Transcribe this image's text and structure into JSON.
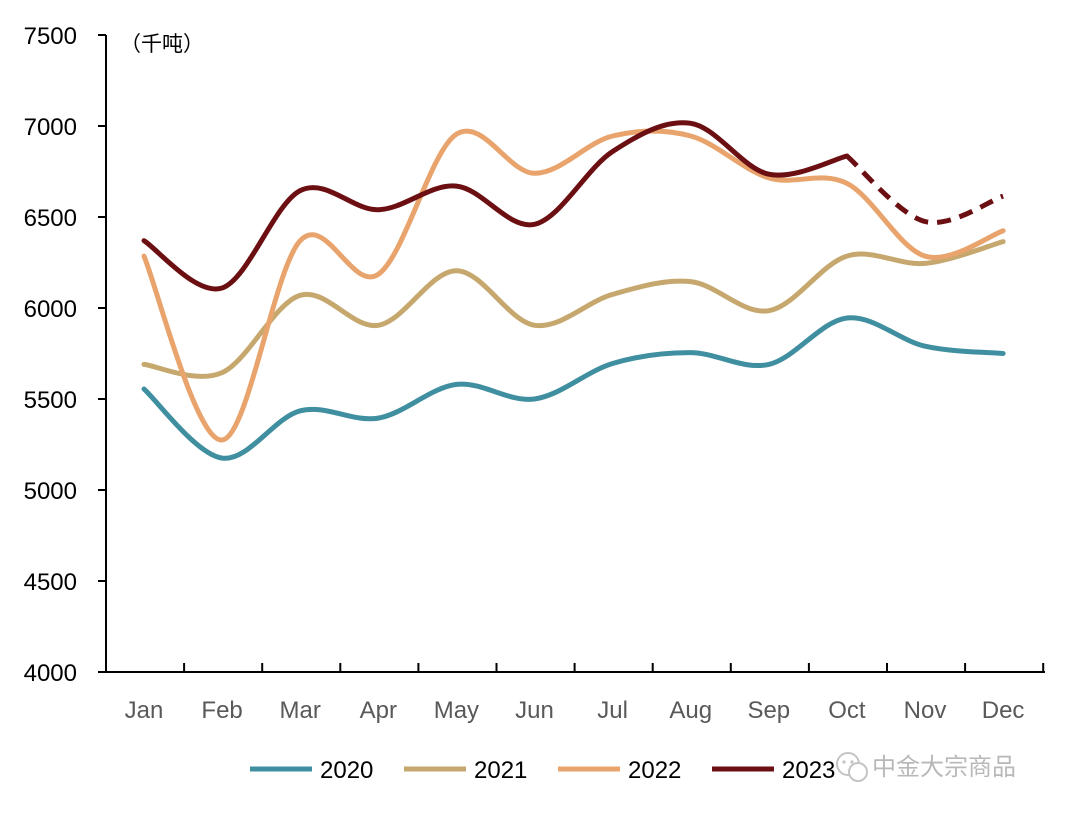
{
  "chart_data": {
    "type": "line",
    "title": "",
    "unit_label": "（千吨）",
    "xlabel": "",
    "ylabel": "",
    "categories": [
      "Jan",
      "Feb",
      "Mar",
      "Apr",
      "May",
      "Jun",
      "Jul",
      "Aug",
      "Sep",
      "Oct",
      "Nov",
      "Dec"
    ],
    "ylim": [
      4000,
      7500
    ],
    "yticks": [
      4000,
      4500,
      5000,
      5500,
      6000,
      6500,
      7000,
      7500
    ],
    "grid": false,
    "legend_position": "bottom",
    "series": [
      {
        "name": "2020",
        "color": "#3f8fa0",
        "values": [
          5555,
          5175,
          5435,
          5395,
          5580,
          5500,
          5695,
          5755,
          5690,
          5945,
          5790,
          5750
        ]
      },
      {
        "name": "2021",
        "color": "#c6a86f",
        "values": [
          5690,
          5645,
          6070,
          5905,
          6205,
          5905,
          6075,
          6145,
          5985,
          6285,
          6245,
          6365
        ]
      },
      {
        "name": "2022",
        "color": "#e8a46c",
        "values": [
          6285,
          5275,
          6370,
          6185,
          6955,
          6740,
          6945,
          6945,
          6715,
          6685,
          6285,
          6425
        ]
      },
      {
        "name": "2023",
        "color": "#6b0f12",
        "values": [
          6370,
          6110,
          6645,
          6540,
          6670,
          6460,
          6860,
          7015,
          6735,
          6835,
          6475,
          6615
        ],
        "dashed_from_index": 9
      }
    ]
  },
  "watermark": {
    "text": "中金大宗商品",
    "icon": "wechat-icon"
  }
}
